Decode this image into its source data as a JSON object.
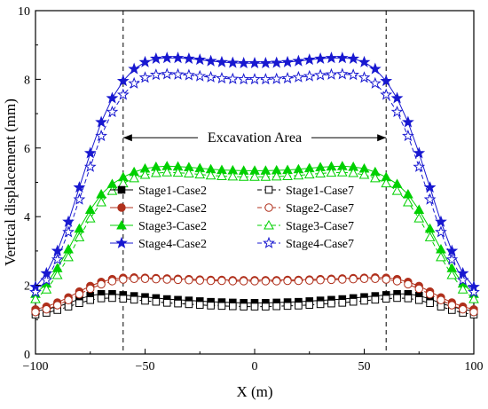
{
  "chart_data": {
    "type": "line",
    "xlabel": "X (m)",
    "ylabel": "Vertical displacement (mm)",
    "xlim": [
      -100,
      100
    ],
    "ylim": [
      0,
      10
    ],
    "xticks": [
      -100,
      -50,
      0,
      50,
      100
    ],
    "yticks": [
      0,
      2,
      4,
      6,
      8,
      10
    ],
    "grid": false,
    "legend": {
      "position": "center-left",
      "columns": 2
    },
    "x": [
      -100,
      -95,
      -90,
      -85,
      -80,
      -75,
      -70,
      -65,
      -60,
      -55,
      -50,
      -45,
      -40,
      -35,
      -30,
      -25,
      -20,
      -15,
      -10,
      -5,
      0,
      5,
      10,
      15,
      20,
      25,
      30,
      35,
      40,
      45,
      50,
      55,
      60,
      65,
      70,
      75,
      80,
      85,
      90,
      95,
      100
    ],
    "series": [
      {
        "name": "Stage1-Case2",
        "color": "#000000",
        "marker": "square-filled",
        "dash": false,
        "values": [
          1.25,
          1.3,
          1.38,
          1.48,
          1.6,
          1.7,
          1.75,
          1.75,
          1.72,
          1.69,
          1.66,
          1.63,
          1.6,
          1.58,
          1.56,
          1.54,
          1.52,
          1.51,
          1.5,
          1.49,
          1.49,
          1.49,
          1.5,
          1.51,
          1.52,
          1.54,
          1.56,
          1.58,
          1.6,
          1.63,
          1.66,
          1.69,
          1.72,
          1.75,
          1.75,
          1.7,
          1.6,
          1.48,
          1.38,
          1.3,
          1.25
        ]
      },
      {
        "name": "Stage2-Case2",
        "color": "#b0301c",
        "marker": "circle-filled",
        "dash": false,
        "values": [
          1.3,
          1.38,
          1.5,
          1.65,
          1.82,
          1.98,
          2.1,
          2.18,
          2.22,
          2.23,
          2.22,
          2.21,
          2.2,
          2.19,
          2.18,
          2.17,
          2.16,
          2.16,
          2.15,
          2.15,
          2.15,
          2.15,
          2.15,
          2.16,
          2.16,
          2.17,
          2.18,
          2.19,
          2.2,
          2.21,
          2.22,
          2.23,
          2.22,
          2.18,
          2.1,
          1.98,
          1.82,
          1.65,
          1.5,
          1.38,
          1.3
        ]
      },
      {
        "name": "Stage3-Case2",
        "color": "#00d000",
        "marker": "triangle-filled",
        "dash": false,
        "values": [
          1.75,
          2.05,
          2.5,
          3.05,
          3.65,
          4.2,
          4.65,
          4.95,
          5.15,
          5.3,
          5.4,
          5.45,
          5.47,
          5.46,
          5.44,
          5.41,
          5.38,
          5.36,
          5.35,
          5.34,
          5.34,
          5.34,
          5.35,
          5.36,
          5.38,
          5.41,
          5.44,
          5.46,
          5.47,
          5.45,
          5.4,
          5.3,
          5.15,
          4.95,
          4.65,
          4.2,
          3.65,
          3.05,
          2.5,
          2.05,
          1.75
        ]
      },
      {
        "name": "Stage4-Case2",
        "color": "#1818d0",
        "marker": "star-filled",
        "dash": false,
        "values": [
          1.95,
          2.35,
          3.0,
          3.85,
          4.85,
          5.85,
          6.75,
          7.45,
          7.95,
          8.3,
          8.5,
          8.6,
          8.62,
          8.62,
          8.6,
          8.57,
          8.53,
          8.5,
          8.48,
          8.47,
          8.47,
          8.47,
          8.48,
          8.5,
          8.53,
          8.57,
          8.6,
          8.62,
          8.62,
          8.6,
          8.5,
          8.3,
          7.95,
          7.45,
          6.75,
          5.85,
          4.85,
          3.85,
          3.0,
          2.35,
          1.95
        ]
      },
      {
        "name": "Stage1-Case7",
        "color": "#000000",
        "marker": "square-open",
        "dash": true,
        "values": [
          1.15,
          1.2,
          1.28,
          1.38,
          1.48,
          1.57,
          1.62,
          1.63,
          1.61,
          1.58,
          1.55,
          1.52,
          1.49,
          1.47,
          1.45,
          1.43,
          1.41,
          1.4,
          1.39,
          1.38,
          1.38,
          1.38,
          1.39,
          1.4,
          1.41,
          1.43,
          1.45,
          1.47,
          1.49,
          1.52,
          1.55,
          1.58,
          1.61,
          1.63,
          1.62,
          1.57,
          1.48,
          1.38,
          1.28,
          1.2,
          1.15
        ]
      },
      {
        "name": "Stage2-Case7",
        "color": "#b0301c",
        "marker": "circle-open",
        "dash": true,
        "values": [
          1.22,
          1.3,
          1.42,
          1.57,
          1.74,
          1.9,
          2.03,
          2.12,
          2.17,
          2.19,
          2.19,
          2.18,
          2.17,
          2.16,
          2.15,
          2.14,
          2.13,
          2.13,
          2.12,
          2.12,
          2.12,
          2.12,
          2.12,
          2.13,
          2.13,
          2.14,
          2.15,
          2.16,
          2.17,
          2.18,
          2.19,
          2.19,
          2.17,
          2.12,
          2.03,
          1.9,
          1.74,
          1.57,
          1.42,
          1.3,
          1.22
        ]
      },
      {
        "name": "Stage3-Case7",
        "color": "#00d000",
        "marker": "triangle-open",
        "dash": true,
        "values": [
          1.6,
          1.88,
          2.3,
          2.82,
          3.4,
          3.95,
          4.42,
          4.75,
          4.97,
          5.12,
          5.22,
          5.27,
          5.29,
          5.28,
          5.26,
          5.23,
          5.2,
          5.18,
          5.17,
          5.16,
          5.16,
          5.16,
          5.17,
          5.18,
          5.2,
          5.23,
          5.26,
          5.28,
          5.29,
          5.27,
          5.22,
          5.12,
          4.97,
          4.75,
          4.42,
          3.95,
          3.4,
          2.82,
          2.3,
          1.88,
          1.6
        ]
      },
      {
        "name": "Stage4-Case7",
        "color": "#1818d0",
        "marker": "star-open",
        "dash": true,
        "values": [
          1.8,
          2.15,
          2.75,
          3.55,
          4.5,
          5.45,
          6.35,
          7.05,
          7.55,
          7.88,
          8.05,
          8.13,
          8.15,
          8.14,
          8.12,
          8.09,
          8.06,
          8.03,
          8.01,
          8.0,
          8.0,
          8.0,
          8.01,
          8.03,
          8.06,
          8.09,
          8.12,
          8.14,
          8.15,
          8.13,
          8.05,
          7.88,
          7.55,
          7.05,
          6.35,
          5.45,
          4.5,
          3.55,
          2.75,
          2.15,
          1.8
        ]
      }
    ],
    "annotations": {
      "excavation_label": "Excavation Area",
      "excavation_bounds": [
        -60,
        60
      ],
      "excavation_arrow_y": 6.3
    }
  }
}
